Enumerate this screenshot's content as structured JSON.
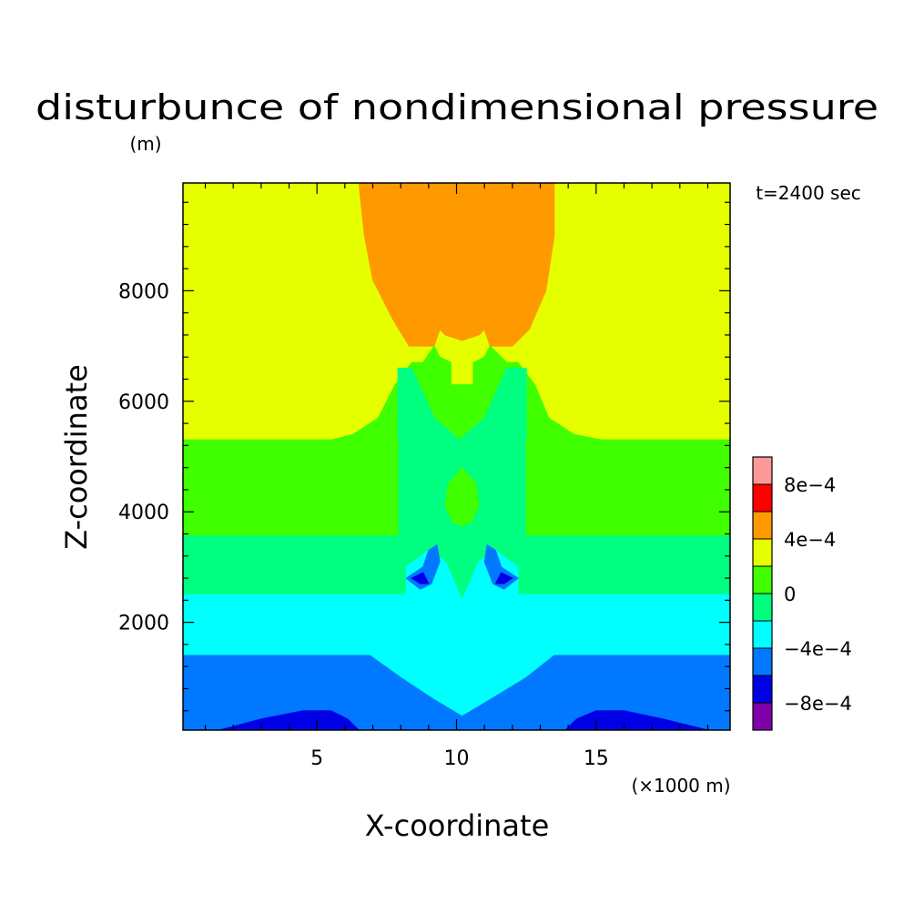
{
  "chart_data": {
    "type": "heatmap",
    "title": "disturbunce of nondimensional pressure",
    "ylabel": "Z-coordinate",
    "xlabel": "X-coordinate",
    "y_unit": "(m)",
    "x_unit": "(×1000 m)",
    "time_label": "t=2400 sec",
    "xlim": [
      0.2,
      19.8
    ],
    "ylim": [
      50,
      9950
    ],
    "x_ticks": [
      5,
      10,
      15
    ],
    "x_tick_labels": [
      "5",
      "10",
      "15"
    ],
    "y_ticks": [
      2000,
      4000,
      6000,
      8000
    ],
    "y_tick_labels": [
      "2000",
      "4000",
      "6000",
      "8000"
    ],
    "grid": false,
    "colorbar": {
      "placement": "right",
      "levels": [
        {
          "range": [
            -0.001,
            -0.0008
          ],
          "color": "#7f00a8"
        },
        {
          "range": [
            -0.0008,
            -0.0006
          ],
          "color": "#0000e6"
        },
        {
          "range": [
            -0.0006,
            -0.0004
          ],
          "color": "#0078ff"
        },
        {
          "range": [
            -0.0004,
            -0.0002
          ],
          "color": "#00ffff"
        },
        {
          "range": [
            -0.0002,
            0
          ],
          "color": "#00ff80"
        },
        {
          "range": [
            0,
            0.0002
          ],
          "color": "#40ff00"
        },
        {
          "range": [
            0.0002,
            0.0004
          ],
          "color": "#e6ff00"
        },
        {
          "range": [
            0.0004,
            0.0006
          ],
          "color": "#ff9900"
        },
        {
          "range": [
            0.0006,
            0.0008
          ],
          "color": "#ff0000"
        },
        {
          "range": [
            0.0008,
            0.001
          ],
          "color": "#ff9999"
        }
      ],
      "labels": [
        {
          "value": -0.0008,
          "text": "−8e−4"
        },
        {
          "value": -0.0004,
          "text": "−4e−4"
        },
        {
          "value": 0,
          "text": "0"
        },
        {
          "value": 0.0004,
          "text": "4e−4"
        },
        {
          "value": 0.0008,
          "text": "8e−4"
        }
      ]
    },
    "regions": [
      {
        "name": "yellow-field",
        "color": "#e6ff00",
        "points": [
          [
            0.2,
            5300
          ],
          [
            0.2,
            9950
          ],
          [
            19.8,
            9950
          ],
          [
            19.8,
            5300
          ]
        ]
      },
      {
        "name": "orange-dome",
        "color": "#ff9900",
        "points": [
          [
            6.5,
            9950
          ],
          [
            13.5,
            9950
          ],
          [
            13.5,
            9000
          ],
          [
            13.2,
            8000
          ],
          [
            12.6,
            7300
          ],
          [
            12,
            7000
          ],
          [
            11.2,
            7000
          ],
          [
            11,
            7300
          ],
          [
            10.8,
            7200
          ],
          [
            10.2,
            7100
          ],
          [
            9.6,
            7200
          ],
          [
            9.4,
            7300
          ],
          [
            9.2,
            7000
          ],
          [
            8.3,
            7000
          ],
          [
            7.7,
            7500
          ],
          [
            7.0,
            8200
          ],
          [
            6.7,
            9000
          ]
        ]
      },
      {
        "name": "green-cup",
        "color": "#40ff00",
        "points": [
          [
            0.2,
            5300
          ],
          [
            5.5,
            5300
          ],
          [
            6.3,
            5400
          ],
          [
            7.2,
            5700
          ],
          [
            7.8,
            6300
          ],
          [
            8.4,
            6700
          ],
          [
            8.8,
            6700
          ],
          [
            9.2,
            7000
          ],
          [
            9.4,
            6800
          ],
          [
            9.8,
            6700
          ],
          [
            9.8,
            6300
          ],
          [
            10.6,
            6300
          ],
          [
            10.6,
            6700
          ],
          [
            11.0,
            6800
          ],
          [
            11.2,
            7000
          ],
          [
            11.8,
            6700
          ],
          [
            12.2,
            6700
          ],
          [
            12.8,
            6300
          ],
          [
            13.3,
            5700
          ],
          [
            14.2,
            5400
          ],
          [
            15.2,
            5300
          ],
          [
            19.8,
            5300
          ],
          [
            19.8,
            3600
          ],
          [
            0.2,
            3600
          ]
        ]
      },
      {
        "name": "green-lobe",
        "color": "#00ff80",
        "points": [
          [
            0.2,
            3600
          ],
          [
            7.9,
            3600
          ],
          [
            7.9,
            6600
          ],
          [
            8.4,
            6600
          ],
          [
            9.2,
            5700
          ],
          [
            10.1,
            5300
          ],
          [
            11.0,
            5700
          ],
          [
            11.8,
            6600
          ],
          [
            12.5,
            6600
          ],
          [
            12.5,
            3600
          ],
          [
            19.8,
            3600
          ],
          [
            19.8,
            2500
          ],
          [
            11,
            2500
          ],
          [
            10.2,
            2300
          ],
          [
            9.4,
            2500
          ],
          [
            0.2,
            2500
          ]
        ]
      },
      {
        "name": "green-band-left",
        "color": "#40ff00",
        "points": [
          [
            0.2,
            3580
          ],
          [
            7.9,
            3580
          ],
          [
            7.9,
            5300
          ],
          [
            0.2,
            5300
          ]
        ]
      },
      {
        "name": "green-band-right",
        "color": "#40ff00",
        "points": [
          [
            12.5,
            3580
          ],
          [
            19.8,
            3580
          ],
          [
            19.8,
            5300
          ],
          [
            12.5,
            5300
          ]
        ]
      },
      {
        "name": "green-bubble",
        "color": "#40ff00",
        "points": [
          [
            10.2,
            4800
          ],
          [
            10.7,
            4500
          ],
          [
            10.8,
            4100
          ],
          [
            10.5,
            3800
          ],
          [
            10.2,
            3750
          ],
          [
            9.9,
            3800
          ],
          [
            9.6,
            4100
          ],
          [
            9.7,
            4500
          ]
        ]
      },
      {
        "name": "cyan-band",
        "color": "#00ffff",
        "points": [
          [
            0.2,
            2500
          ],
          [
            8.2,
            2500
          ],
          [
            8.2,
            3000
          ],
          [
            9.0,
            3300
          ],
          [
            9.6,
            3100
          ],
          [
            10.2,
            2400
          ],
          [
            10.8,
            3100
          ],
          [
            11.4,
            3300
          ],
          [
            12.2,
            3000
          ],
          [
            12.2,
            2500
          ],
          [
            19.8,
            2500
          ],
          [
            19.8,
            1400
          ],
          [
            13.5,
            1400
          ],
          [
            12.5,
            1000
          ],
          [
            11.2,
            600
          ],
          [
            10.2,
            300
          ],
          [
            9.2,
            600
          ],
          [
            8,
            1000
          ],
          [
            6.9,
            1400
          ],
          [
            0.2,
            1400
          ]
        ]
      },
      {
        "name": "blue-band",
        "color": "#0078ff",
        "points": [
          [
            0.2,
            1400
          ],
          [
            6.9,
            1400
          ],
          [
            8,
            1000
          ],
          [
            9.2,
            600
          ],
          [
            10.2,
            300
          ],
          [
            11.2,
            600
          ],
          [
            12.5,
            1000
          ],
          [
            13.5,
            1400
          ],
          [
            19.8,
            1400
          ],
          [
            19.8,
            50
          ],
          [
            0.2,
            50
          ]
        ]
      },
      {
        "name": "deep-blue-left",
        "color": "#0000e6",
        "points": [
          [
            1.5,
            50
          ],
          [
            6.5,
            50
          ],
          [
            6.1,
            250
          ],
          [
            5.5,
            400
          ],
          [
            4.5,
            400
          ],
          [
            3.0,
            250
          ]
        ]
      },
      {
        "name": "deep-blue-right",
        "color": "#0000e6",
        "points": [
          [
            13.9,
            50
          ],
          [
            19.0,
            50
          ],
          [
            17.4,
            250
          ],
          [
            16.0,
            400
          ],
          [
            15.0,
            400
          ],
          [
            14.3,
            250
          ]
        ]
      },
      {
        "name": "swirl-left",
        "color": "#0078ff",
        "points": [
          [
            8.2,
            2800
          ],
          [
            8.8,
            3000
          ],
          [
            9.0,
            3300
          ],
          [
            9.3,
            3400
          ],
          [
            9.4,
            3100
          ],
          [
            9.1,
            2700
          ],
          [
            8.7,
            2600
          ]
        ]
      },
      {
        "name": "swirl-left-core",
        "color": "#0000e6",
        "points": [
          [
            8.4,
            2800
          ],
          [
            8.8,
            2900
          ],
          [
            9.0,
            2700
          ],
          [
            8.7,
            2700
          ]
        ]
      },
      {
        "name": "swirl-right",
        "color": "#0078ff",
        "points": [
          [
            12.2,
            2800
          ],
          [
            11.6,
            3000
          ],
          [
            11.4,
            3300
          ],
          [
            11.1,
            3400
          ],
          [
            11.0,
            3100
          ],
          [
            11.3,
            2700
          ],
          [
            11.7,
            2600
          ]
        ]
      },
      {
        "name": "swirl-right-core",
        "color": "#0000e6",
        "points": [
          [
            12.0,
            2800
          ],
          [
            11.6,
            2900
          ],
          [
            11.4,
            2700
          ],
          [
            11.7,
            2700
          ]
        ]
      }
    ]
  }
}
